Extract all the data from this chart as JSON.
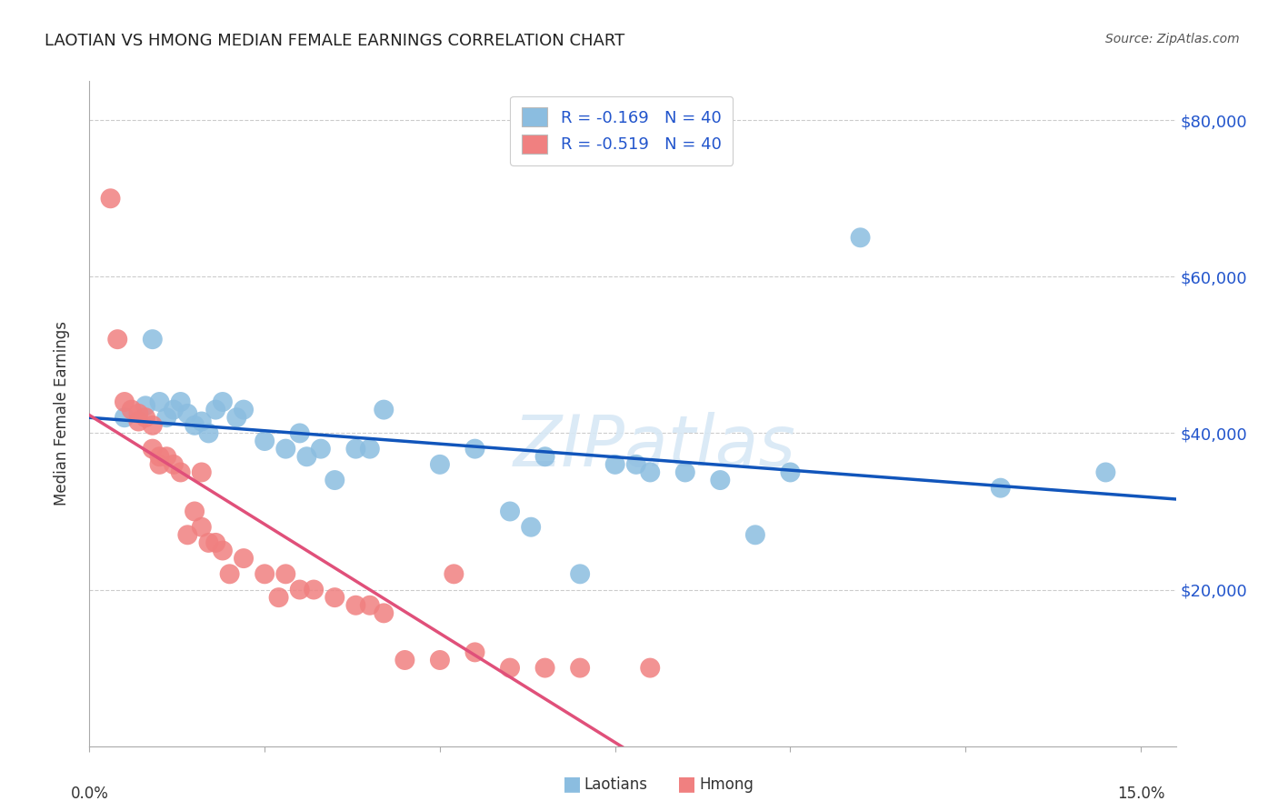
{
  "title": "LAOTIAN VS HMONG MEDIAN FEMALE EARNINGS CORRELATION CHART",
  "source": "Source: ZipAtlas.com",
  "ylabel": "Median Female Earnings",
  "xlim": [
    0.0,
    0.155
  ],
  "ylim": [
    0,
    85000
  ],
  "ytick_vals": [
    20000,
    40000,
    60000,
    80000
  ],
  "ytick_labels": [
    "$20,000",
    "$40,000",
    "$60,000",
    "$80,000"
  ],
  "watermark": "ZIPatlas",
  "legend_label_blue": "Laotians",
  "legend_label_pink": "Hmong",
  "blue_color": "#8BBDE0",
  "pink_color": "#F08080",
  "blue_line_color": "#1155BB",
  "pink_line_color": "#E0507A",
  "r_text_color": "#2255CC",
  "grid_color": "#CCCCCC",
  "background_color": "#FFFFFF",
  "title_fontsize": 13,
  "laotian_x": [
    0.005,
    0.008,
    0.009,
    0.01,
    0.011,
    0.012,
    0.013,
    0.014,
    0.015,
    0.016,
    0.017,
    0.018,
    0.019,
    0.021,
    0.022,
    0.025,
    0.028,
    0.03,
    0.031,
    0.033,
    0.035,
    0.038,
    0.04,
    0.042,
    0.05,
    0.055,
    0.06,
    0.063,
    0.065,
    0.07,
    0.075,
    0.078,
    0.08,
    0.085,
    0.09,
    0.095,
    0.1,
    0.11,
    0.13,
    0.145
  ],
  "laotian_y": [
    42000,
    43500,
    52000,
    44000,
    42000,
    43000,
    44000,
    42500,
    41000,
    41500,
    40000,
    43000,
    44000,
    42000,
    43000,
    39000,
    38000,
    40000,
    37000,
    38000,
    34000,
    38000,
    38000,
    43000,
    36000,
    38000,
    30000,
    28000,
    37000,
    22000,
    36000,
    36000,
    35000,
    35000,
    34000,
    27000,
    35000,
    65000,
    33000,
    35000
  ],
  "hmong_x": [
    0.003,
    0.004,
    0.005,
    0.006,
    0.007,
    0.007,
    0.008,
    0.009,
    0.009,
    0.01,
    0.01,
    0.011,
    0.012,
    0.013,
    0.014,
    0.015,
    0.016,
    0.016,
    0.017,
    0.018,
    0.019,
    0.02,
    0.022,
    0.025,
    0.027,
    0.028,
    0.03,
    0.032,
    0.035,
    0.038,
    0.04,
    0.042,
    0.045,
    0.05,
    0.052,
    0.055,
    0.06,
    0.065,
    0.07,
    0.08
  ],
  "hmong_y": [
    70000,
    52000,
    44000,
    43000,
    42500,
    41500,
    42000,
    41000,
    38000,
    37000,
    36000,
    37000,
    36000,
    35000,
    27000,
    30000,
    35000,
    28000,
    26000,
    26000,
    25000,
    22000,
    24000,
    22000,
    19000,
    22000,
    20000,
    20000,
    19000,
    18000,
    18000,
    17000,
    11000,
    11000,
    22000,
    12000,
    10000,
    10000,
    10000,
    10000
  ]
}
